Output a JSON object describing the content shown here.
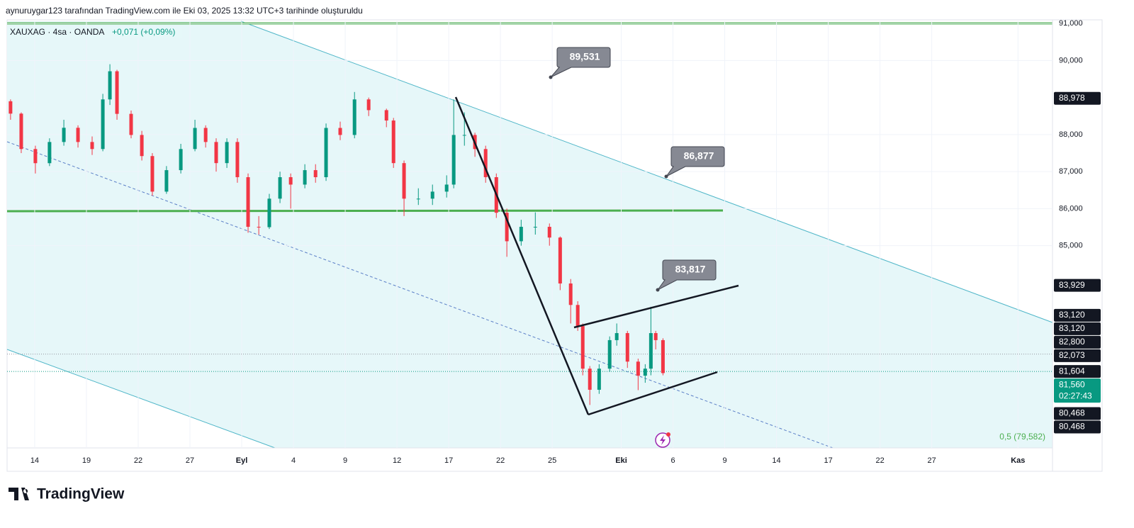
{
  "header": {
    "credit": "aynuruygar123 tarafından TradingView.com ile Eki 03, 2025 13:32 UTC+3 tarihinde oluşturuldu",
    "logo": "TradingView"
  },
  "chart_data": {
    "type": "candlestick",
    "symbol": "XAUXAG · 4sa · OANDA",
    "change": "+0,071 (+0,09%)",
    "up_color": "#089981",
    "down_color": "#f23645",
    "ylim": [
      79540,
      91060
    ],
    "yticks": [
      {
        "value": 91000,
        "label": "91,000"
      },
      {
        "value": 90000,
        "label": "90,000"
      },
      {
        "value": 88000,
        "label": "88,000"
      },
      {
        "value": 87000,
        "label": "87,000"
      },
      {
        "value": 86000,
        "label": "86,000"
      },
      {
        "value": 85000,
        "label": "85,000"
      }
    ],
    "xlim": [
      -1.6,
      59
    ],
    "xticks": [
      {
        "value": 0,
        "label": "14"
      },
      {
        "value": 3,
        "label": "19"
      },
      {
        "value": 6,
        "label": "22"
      },
      {
        "value": 9,
        "label": "27"
      },
      {
        "value": 12,
        "label": "Eyl"
      },
      {
        "value": 15,
        "label": "4"
      },
      {
        "value": 18,
        "label": "9"
      },
      {
        "value": 21,
        "label": "12"
      },
      {
        "value": 24,
        "label": "17"
      },
      {
        "value": 27,
        "label": "22"
      },
      {
        "value": 30,
        "label": "25"
      },
      {
        "value": 34,
        "label": "Eki"
      },
      {
        "value": 37,
        "label": "6"
      },
      {
        "value": 40,
        "label": "9"
      },
      {
        "value": 43,
        "label": "14"
      },
      {
        "value": 46,
        "label": "17"
      },
      {
        "value": 49,
        "label": "22"
      },
      {
        "value": 52,
        "label": "27"
      },
      {
        "value": 57,
        "label": "Kas"
      }
    ],
    "candles": [
      [
        -1.4,
        88900,
        88950,
        88400,
        88566
      ],
      [
        -0.78,
        88566,
        88600,
        87500,
        87610
      ],
      [
        0.04,
        87610,
        87700,
        86950,
        87228
      ],
      [
        0.86,
        87228,
        87900,
        87150,
        87800
      ],
      [
        1.69,
        87800,
        88400,
        87700,
        88184
      ],
      [
        2.51,
        88184,
        88250,
        87650,
        87800
      ],
      [
        3.33,
        87800,
        87950,
        87450,
        87610
      ],
      [
        3.95,
        87610,
        89100,
        87550,
        88950
      ],
      [
        4.36,
        88950,
        89900,
        88800,
        89710
      ],
      [
        4.77,
        89710,
        89750,
        88400,
        88560
      ],
      [
        5.59,
        88560,
        88650,
        87900,
        87990
      ],
      [
        6.21,
        87990,
        88100,
        87300,
        87420
      ],
      [
        6.82,
        87420,
        87500,
        86350,
        86460
      ],
      [
        7.64,
        86460,
        87150,
        86400,
        87040
      ],
      [
        8.47,
        87040,
        87750,
        86950,
        87610
      ],
      [
        9.29,
        87610,
        88400,
        87550,
        88180
      ],
      [
        9.91,
        88180,
        88250,
        87650,
        87800
      ],
      [
        10.52,
        87800,
        87900,
        87000,
        87230
      ],
      [
        11.14,
        87230,
        87900,
        87100,
        87800
      ],
      [
        11.75,
        87800,
        87900,
        86700,
        86850
      ],
      [
        12.37,
        86850,
        86950,
        85350,
        85510
      ],
      [
        12.99,
        85510,
        85800,
        85300,
        85500
      ],
      [
        13.6,
        85500,
        86400,
        85450,
        86270
      ],
      [
        14.22,
        86270,
        87000,
        86150,
        86850
      ],
      [
        14.84,
        86850,
        86950,
        86000,
        86650
      ],
      [
        15.66,
        86650,
        87200,
        86550,
        87040
      ],
      [
        16.28,
        87040,
        87200,
        86700,
        86850
      ],
      [
        16.89,
        86850,
        88300,
        86750,
        88180
      ],
      [
        17.71,
        88180,
        88350,
        87850,
        87990
      ],
      [
        18.54,
        87990,
        89150,
        87900,
        88950
      ],
      [
        19.36,
        88950,
        89000,
        88500,
        88660
      ],
      [
        20.39,
        88660,
        88700,
        88200,
        88380
      ],
      [
        20.8,
        88380,
        88450,
        87100,
        87230
      ],
      [
        21.41,
        87230,
        87300,
        85800,
        86270
      ],
      [
        22.24,
        86270,
        86550,
        86100,
        86270
      ],
      [
        23.06,
        86270,
        86650,
        86100,
        86460
      ],
      [
        23.88,
        86460,
        86900,
        86300,
        86650
      ],
      [
        24.29,
        86650,
        88950,
        86550,
        87990
      ],
      [
        24.91,
        87990,
        88600,
        87700,
        87990
      ],
      [
        25.52,
        87990,
        88050,
        87400,
        87610
      ],
      [
        26.14,
        87610,
        87700,
        86700,
        86850
      ],
      [
        26.76,
        86850,
        86950,
        85750,
        85890
      ],
      [
        27.37,
        85890,
        86000,
        84700,
        85120
      ],
      [
        28.2,
        85120,
        85700,
        85000,
        85510
      ],
      [
        29.02,
        85510,
        85900,
        85300,
        85510
      ],
      [
        29.84,
        85510,
        85600,
        85000,
        85220
      ],
      [
        30.46,
        85220,
        85250,
        83800,
        83980
      ],
      [
        31.07,
        83980,
        84100,
        82900,
        83400
      ],
      [
        31.48,
        83400,
        83500,
        82700,
        82830
      ],
      [
        31.77,
        82830,
        82900,
        81500,
        81680
      ],
      [
        32.18,
        81680,
        81750,
        80700,
        81110
      ],
      [
        32.72,
        81110,
        81800,
        81000,
        81680
      ],
      [
        33.33,
        81680,
        82550,
        81600,
        82450
      ],
      [
        33.74,
        82450,
        82900,
        82300,
        82640
      ],
      [
        34.36,
        82640,
        82700,
        81700,
        81870
      ],
      [
        34.98,
        81870,
        81950,
        81100,
        81490
      ],
      [
        35.39,
        81490,
        81800,
        81300,
        81680
      ],
      [
        35.72,
        81680,
        83350,
        81500,
        82640
      ],
      [
        36.0,
        82640,
        82700,
        82200,
        82450
      ],
      [
        36.42,
        82450,
        82500,
        81500,
        81560
      ]
    ],
    "callouts": [
      "89,531",
      "86,877",
      "83,817"
    ],
    "fib_label": "0,5 (79,582)",
    "price_labels": [
      {
        "value": 88978,
        "label": "88,978",
        "color": "#131722"
      },
      {
        "value": 83929,
        "label": "83,929",
        "color": "#131722"
      },
      {
        "value": 83120,
        "label": "83,120",
        "color": "#131722"
      },
      {
        "value": 83120,
        "label": "83,120",
        "color": "#131722"
      },
      {
        "value": 82800,
        "label": "82,800",
        "color": "#131722"
      },
      {
        "value": 82073,
        "label": "82,073",
        "color": "#131722",
        "line_color": "#9598a1"
      },
      {
        "value": 81604,
        "label": "81,604",
        "color": "#131722",
        "line_color": "#089981"
      },
      {
        "value": 81560,
        "label": "81,560",
        "color": "#089981",
        "countdown": "02:27:43"
      },
      {
        "value": 80468,
        "label": "80,468",
        "color": "#131722"
      },
      {
        "value": 80468,
        "label": "80,468",
        "color": "#131722"
      }
    ]
  }
}
